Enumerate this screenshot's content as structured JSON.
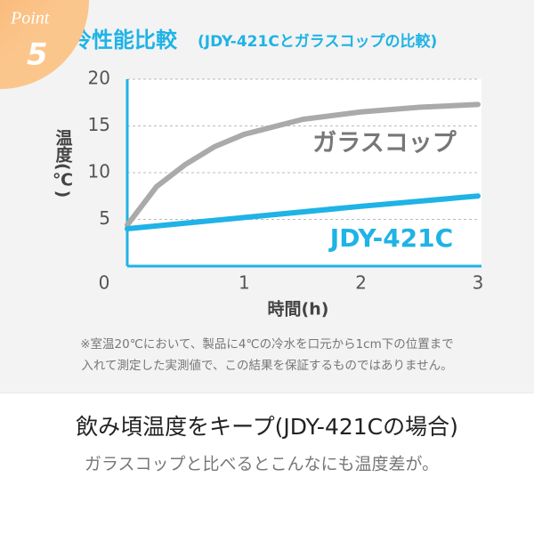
{
  "badge": {
    "label": "Point",
    "number": "5"
  },
  "chart_data": {
    "type": "line",
    "title": "保冷性能比較",
    "subtitle": "(JDY-421Cとガラスコップの比較)",
    "x_label": "時間(h)",
    "y_label": "温度(℃)",
    "xlim": [
      0,
      3
    ],
    "xticks": [
      0,
      1,
      2,
      3
    ],
    "ylim": [
      0,
      20
    ],
    "yticks": [
      5,
      10,
      15,
      20
    ],
    "grid": true,
    "series": [
      {
        "name": "ガラスコップ",
        "color": "#aaaaaa",
        "x": [
          0,
          0.25,
          0.5,
          0.75,
          1,
          1.5,
          2,
          2.5,
          3
        ],
        "values": [
          4.4,
          8.5,
          10.9,
          12.8,
          14.1,
          15.7,
          16.5,
          17.0,
          17.3
        ]
      },
      {
        "name": "JDY-421C",
        "color": "#1fb3e6",
        "x": [
          0,
          1,
          2,
          3
        ],
        "values": [
          4.0,
          5.2,
          6.4,
          7.5
        ]
      }
    ]
  },
  "note": [
    "※室温20℃において、製品に4℃の冷水を口元から1cm下の位置まで",
    "入れて測定した実測値で、この結果を保証するものではありません。"
  ],
  "footer": {
    "heading": "飲み頃温度をキープ(JDY-421Cの場合)",
    "text": "ガラスコップと比べるとこんなにも温度差が。"
  }
}
